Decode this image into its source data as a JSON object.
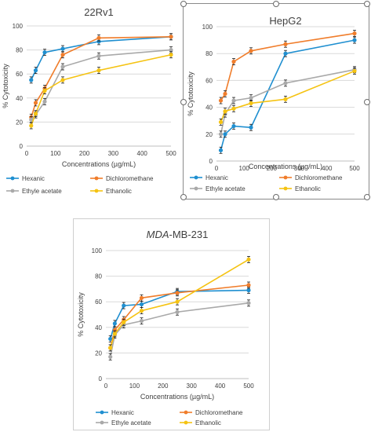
{
  "chart_data": [
    {
      "type": "line",
      "title": "22Rv1",
      "title_italic_part": "",
      "xlabel": "Concentrations (µg/mL)",
      "ylabel": "% Cytotoxicity",
      "xlim": [
        0,
        500
      ],
      "ylim": [
        0,
        100
      ],
      "xticks": [
        "0",
        "100",
        "200",
        "300",
        "400",
        "500"
      ],
      "yticks": [
        "0",
        "20",
        "40",
        "60",
        "80",
        "100"
      ],
      "grid": true,
      "legend_position": "bottom",
      "x": [
        15.6,
        31.2,
        62.5,
        125,
        250,
        500
      ],
      "series": [
        {
          "name": "Hexanic",
          "color": "#1f8fd0",
          "values": [
            55,
            63,
            78,
            81,
            87,
            91
          ]
        },
        {
          "name": "Dichloromethane",
          "color": "#f07d2b",
          "values": [
            24,
            36,
            48,
            76,
            90,
            91
          ]
        },
        {
          "name": "Ethyle acetate",
          "color": "#a9a9a9",
          "values": [
            22,
            26,
            37,
            66,
            75,
            80
          ]
        },
        {
          "name": "Ethanolic",
          "color": "#f5c312",
          "values": [
            17,
            27,
            46,
            55,
            63,
            76
          ]
        }
      ]
    },
    {
      "type": "line",
      "title": "HepG2",
      "title_italic_part": "",
      "xlabel": "Concentrations (µg/mL)",
      "ylabel": "% Cytotoxicity",
      "xlim": [
        0,
        500
      ],
      "ylim": [
        0,
        100
      ],
      "xticks": [
        "0",
        "100",
        "200",
        "300",
        "400",
        "500"
      ],
      "yticks": [
        "0",
        "20",
        "40",
        "60",
        "80",
        "100"
      ],
      "grid": true,
      "legend_position": "bottom",
      "x": [
        15.6,
        31.2,
        62.5,
        125,
        250,
        500
      ],
      "series": [
        {
          "name": "Hexanic",
          "color": "#1f8fd0",
          "values": [
            8,
            20,
            26,
            25,
            80,
            90
          ]
        },
        {
          "name": "Dichloromethane",
          "color": "#f07d2b",
          "values": [
            45,
            50,
            74,
            82,
            87,
            95
          ]
        },
        {
          "name": "Ethyle acetate",
          "color": "#a9a9a9",
          "values": [
            20,
            35,
            45,
            47,
            58,
            68
          ]
        },
        {
          "name": "Ethanolic",
          "color": "#f5c312",
          "values": [
            29,
            37,
            39,
            43,
            46,
            67
          ]
        }
      ]
    },
    {
      "type": "line",
      "title": "-MB-231",
      "title_italic_part": "MDA",
      "xlabel": "Concentrations (µg/mL)",
      "ylabel": "% Cytotoxicity",
      "xlim": [
        0,
        500
      ],
      "ylim": [
        0,
        100
      ],
      "xticks": [
        "0",
        "100",
        "200",
        "300",
        "400",
        "500"
      ],
      "yticks": [
        "0",
        "20",
        "40",
        "60",
        "80",
        "100"
      ],
      "grid": true,
      "legend_position": "bottom",
      "x": [
        15.6,
        31.2,
        62.5,
        125,
        250,
        500
      ],
      "series": [
        {
          "name": "Hexanic",
          "color": "#1f8fd0",
          "values": [
            31,
            43,
            57,
            58,
            68,
            69
          ]
        },
        {
          "name": "Dichloromethane",
          "color": "#f07d2b",
          "values": [
            24,
            38,
            46,
            63,
            67,
            73
          ]
        },
        {
          "name": "Ethyle acetate",
          "color": "#a9a9a9",
          "values": [
            17,
            34,
            42,
            45,
            52,
            59
          ]
        },
        {
          "name": "Ethanolic",
          "color": "#f5c312",
          "values": [
            24,
            35,
            44,
            53,
            60,
            93
          ]
        }
      ]
    }
  ]
}
